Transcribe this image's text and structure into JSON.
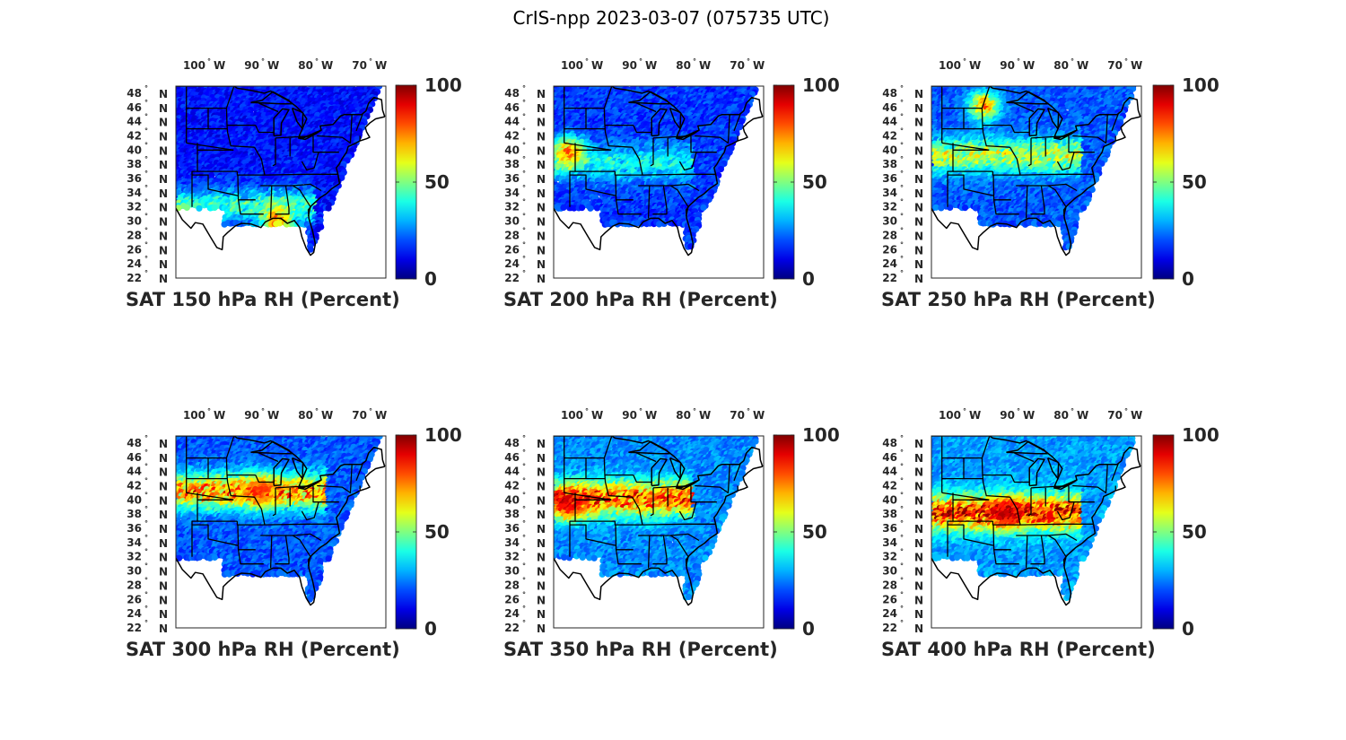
{
  "figure_title": "CrIS-npp 2023-03-07 (075735 UTC)",
  "chart_data": [
    {
      "type": "scatter",
      "title": "SAT 150 hPa RH (Percent)",
      "variable": "RH",
      "level_hPa": 150,
      "units": "Percent",
      "lon_ticks": [
        "100",
        "90",
        "80",
        "70"
      ],
      "lon_unit": "W",
      "lat_ticks": [
        "48",
        "46",
        "44",
        "42",
        "40",
        "38",
        "36",
        "34",
        "32",
        "30",
        "28",
        "26",
        "24",
        "22"
      ],
      "lat_unit": "N",
      "xlim": [
        -106,
        -67
      ],
      "ylim": [
        22,
        49
      ],
      "colorbar": {
        "ticks": [
          "100",
          "50",
          "0"
        ],
        "range": [
          0,
          100
        ],
        "colormap": "jet"
      },
      "pattern": {
        "base": 8,
        "moist_band_lat": 32,
        "moist_band_lon": [
          -106,
          -80
        ],
        "moist_value": 40,
        "hotspot": {
          "lat": 30,
          "lon": -87,
          "value": 85
        }
      }
    },
    {
      "type": "scatter",
      "title": "SAT 200 hPa RH (Percent)",
      "variable": "RH",
      "level_hPa": 200,
      "units": "Percent",
      "lon_ticks": [
        "100",
        "90",
        "80",
        "70"
      ],
      "lon_unit": "W",
      "lat_ticks": [
        "48",
        "46",
        "44",
        "42",
        "40",
        "38",
        "36",
        "34",
        "32",
        "30",
        "28",
        "26",
        "24",
        "22"
      ],
      "lat_unit": "N",
      "xlim": [
        -106,
        -67
      ],
      "ylim": [
        22,
        49
      ],
      "colorbar": {
        "ticks": [
          "100",
          "50",
          "0"
        ],
        "range": [
          0,
          100
        ],
        "colormap": "jet"
      },
      "pattern": {
        "base": 12,
        "moist_band_lat": 38,
        "moist_band_lon": [
          -106,
          -80
        ],
        "moist_value": 35,
        "hotspot": {
          "lat": 39.5,
          "lon": -103,
          "value": 88
        }
      }
    },
    {
      "type": "scatter",
      "title": "SAT 250 hPa RH (Percent)",
      "variable": "RH",
      "level_hPa": 250,
      "units": "Percent",
      "lon_ticks": [
        "100",
        "90",
        "80",
        "70"
      ],
      "lon_unit": "W",
      "lat_ticks": [
        "48",
        "46",
        "44",
        "42",
        "40",
        "38",
        "36",
        "34",
        "32",
        "30",
        "28",
        "26",
        "24",
        "22"
      ],
      "lat_unit": "N",
      "xlim": [
        -106,
        -67
      ],
      "ylim": [
        22,
        49
      ],
      "colorbar": {
        "ticks": [
          "100",
          "50",
          "0"
        ],
        "range": [
          0,
          100
        ],
        "colormap": "jet"
      },
      "pattern": {
        "base": 15,
        "moist_band_lat": 39,
        "moist_band_lon": [
          -106,
          -78
        ],
        "moist_value": 55,
        "hotspot": {
          "lat": 46,
          "lon": -96,
          "value": 85
        }
      }
    },
    {
      "type": "scatter",
      "title": "SAT 300 hPa RH (Percent)",
      "variable": "RH",
      "level_hPa": 300,
      "units": "Percent",
      "lon_ticks": [
        "100",
        "90",
        "80",
        "70"
      ],
      "lon_unit": "W",
      "lat_ticks": [
        "48",
        "46",
        "44",
        "42",
        "40",
        "38",
        "36",
        "34",
        "32",
        "30",
        "28",
        "26",
        "24",
        "22"
      ],
      "lat_unit": "N",
      "xlim": [
        -106,
        -67
      ],
      "ylim": [
        22,
        49
      ],
      "colorbar": {
        "ticks": [
          "100",
          "50",
          "0"
        ],
        "range": [
          0,
          100
        ],
        "colormap": "jet"
      },
      "pattern": {
        "base": 15,
        "moist_band_lat": 41,
        "moist_band_lon": [
          -106,
          -78
        ],
        "moist_value": 75,
        "hotspot": {
          "lat": 41,
          "lon": -90,
          "value": 85
        }
      }
    },
    {
      "type": "scatter",
      "title": "SAT 350 hPa RH (Percent)",
      "variable": "RH",
      "level_hPa": 350,
      "units": "Percent",
      "lon_ticks": [
        "100",
        "90",
        "80",
        "70"
      ],
      "lon_unit": "W",
      "lat_ticks": [
        "48",
        "46",
        "44",
        "42",
        "40",
        "38",
        "36",
        "34",
        "32",
        "30",
        "28",
        "26",
        "24",
        "22"
      ],
      "lat_unit": "N",
      "xlim": [
        -106,
        -67
      ],
      "ylim": [
        22,
        49
      ],
      "colorbar": {
        "ticks": [
          "100",
          "50",
          "0"
        ],
        "range": [
          0,
          100
        ],
        "colormap": "jet"
      },
      "pattern": {
        "base": 20,
        "moist_band_lat": 40,
        "moist_band_lon": [
          -106,
          -80
        ],
        "moist_value": 82,
        "hotspot": {
          "lat": 39,
          "lon": -103,
          "value": 95
        }
      }
    },
    {
      "type": "scatter",
      "title": "SAT 400 hPa RH (Percent)",
      "variable": "RH",
      "level_hPa": 400,
      "units": "Percent",
      "lon_ticks": [
        "100",
        "90",
        "80",
        "70"
      ],
      "lon_unit": "W",
      "lat_ticks": [
        "48",
        "46",
        "44",
        "42",
        "40",
        "38",
        "36",
        "34",
        "32",
        "30",
        "28",
        "26",
        "24",
        "22"
      ],
      "lat_unit": "N",
      "xlim": [
        -106,
        -67
      ],
      "ylim": [
        22,
        49
      ],
      "colorbar": {
        "ticks": [
          "100",
          "50",
          "0"
        ],
        "range": [
          0,
          100
        ],
        "colormap": "jet"
      },
      "pattern": {
        "base": 22,
        "moist_band_lat": 38,
        "moist_band_lon": [
          -106,
          -78
        ],
        "moist_value": 88,
        "hotspot": {
          "lat": 38,
          "lon": -92,
          "value": 97
        }
      }
    }
  ]
}
